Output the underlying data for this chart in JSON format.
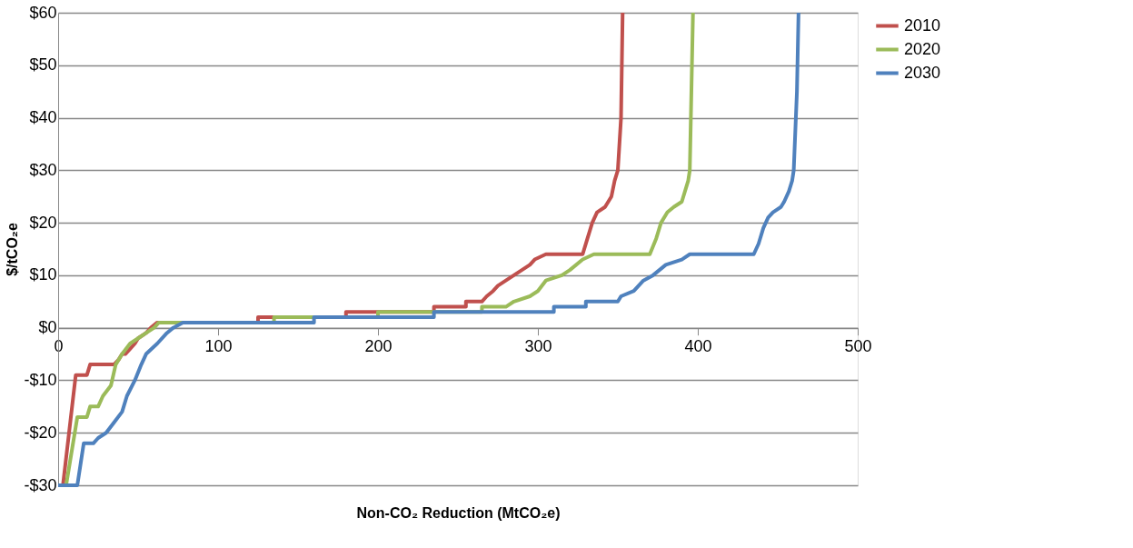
{
  "chart_data": {
    "type": "line",
    "xlabel": "Non-CO₂ Reduction (MtCO₂e)",
    "ylabel": "$/tCO₂e",
    "xlim": [
      0,
      500
    ],
    "xticks": [
      0,
      100,
      200,
      300,
      400,
      500
    ],
    "ylim": [
      -30,
      60
    ],
    "yticks": [
      {
        "value": -30,
        "label": "-$30"
      },
      {
        "value": -20,
        "label": "-$20"
      },
      {
        "value": -10,
        "label": "-$10"
      },
      {
        "value": 0,
        "label": "$0"
      },
      {
        "value": 10,
        "label": "$10"
      },
      {
        "value": 20,
        "label": "$20"
      },
      {
        "value": 30,
        "label": "$30"
      },
      {
        "value": 40,
        "label": "$40"
      },
      {
        "value": 50,
        "label": "$50"
      },
      {
        "value": 60,
        "label": "$60"
      }
    ],
    "grid": "y",
    "legend": "right",
    "marker": "none",
    "line_style": "solid",
    "series": [
      {
        "name": "2010",
        "color": "#c0504d",
        "x": [
          3,
          11,
          18,
          20,
          35,
          38,
          40,
          42,
          45,
          48,
          50,
          55,
          58,
          62,
          125,
          125,
          180,
          180,
          235,
          235,
          255,
          255,
          265,
          268,
          272,
          275,
          280,
          285,
          290,
          295,
          298,
          305,
          328,
          331,
          334,
          337,
          342,
          346,
          348,
          350,
          352,
          353
        ],
        "values": [
          -30,
          -9,
          -9,
          -7,
          -7,
          -6,
          -5,
          -5,
          -4,
          -3,
          -2,
          -1,
          0,
          1,
          1,
          2,
          2,
          3,
          3,
          4,
          4,
          5,
          5,
          6,
          7,
          8,
          9,
          10,
          11,
          12,
          13,
          14,
          14,
          17,
          20,
          22,
          23,
          25,
          28,
          30,
          40,
          60
        ]
      },
      {
        "name": "2020",
        "color": "#9bbb59",
        "x": [
          5,
          12,
          18,
          20,
          25,
          28,
          33,
          36,
          40,
          45,
          50,
          55,
          60,
          63,
          135,
          135,
          200,
          200,
          265,
          265,
          280,
          285,
          295,
          300,
          305,
          315,
          320,
          328,
          335,
          370,
          374,
          377,
          381,
          385,
          390,
          394,
          395,
          396,
          397
        ],
        "values": [
          -30,
          -17,
          -17,
          -15,
          -15,
          -13,
          -11,
          -7,
          -5,
          -3,
          -2,
          -1,
          0,
          1,
          1,
          2,
          2,
          3,
          3,
          4,
          4,
          5,
          6,
          7,
          9,
          10,
          11,
          13,
          14,
          14,
          17,
          20,
          22,
          23,
          24,
          28,
          30,
          45,
          60
        ]
      },
      {
        "name": "2030",
        "color": "#4f81bd",
        "x": [
          0,
          12,
          16,
          22,
          25,
          30,
          35,
          40,
          43,
          48,
          52,
          55,
          62,
          68,
          72,
          78,
          160,
          160,
          235,
          235,
          310,
          310,
          330,
          330,
          350,
          352,
          360,
          366,
          372,
          380,
          390,
          395,
          435,
          438,
          441,
          444,
          447,
          452,
          454,
          457,
          459,
          460,
          462,
          463
        ],
        "values": [
          -30,
          -30,
          -22,
          -22,
          -21,
          -20,
          -18,
          -16,
          -13,
          -10,
          -7,
          -5,
          -3,
          -1,
          0,
          1,
          1,
          2,
          2,
          3,
          3,
          4,
          4,
          5,
          5,
          6,
          7,
          9,
          10,
          12,
          13,
          14,
          14,
          16,
          19,
          21,
          22,
          23,
          24,
          26,
          28,
          30,
          45,
          60
        ]
      }
    ]
  }
}
